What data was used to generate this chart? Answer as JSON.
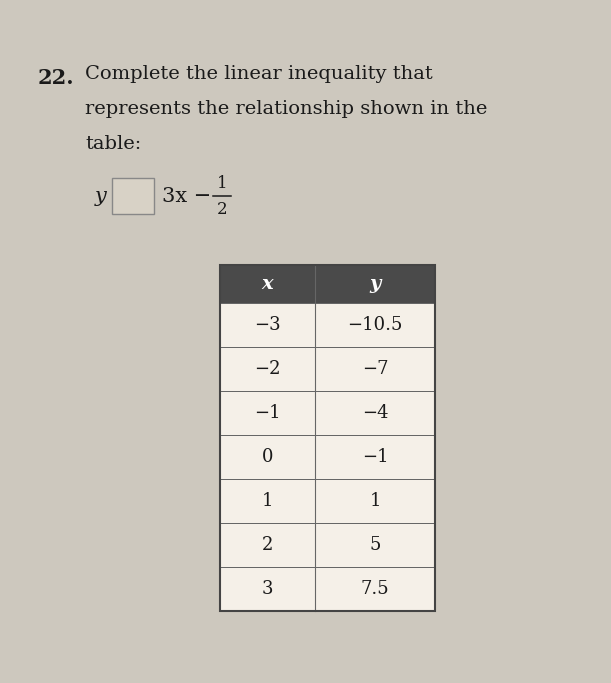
{
  "question_number": "22.",
  "question_text_line1": "Complete the linear inequality that",
  "question_text_line2": "represents the relationship shown in the",
  "question_text_line3": "table:",
  "table_headers": [
    "x",
    "y"
  ],
  "table_data": [
    [
      "−3",
      "−10.5"
    ],
    [
      "−2",
      "−7"
    ],
    [
      "−1",
      "−4"
    ],
    [
      "0",
      "−1"
    ],
    [
      "1",
      "1"
    ],
    [
      "2",
      "5"
    ],
    [
      "3",
      "7.5"
    ]
  ],
  "bg_color": "#cdc8be",
  "table_header_bg": "#4a4a4a",
  "table_header_fg": "#ffffff",
  "table_row_bg": "#f5f0e8",
  "table_border_color": "#666666",
  "text_color": "#1a1a1a",
  "box_fill": "#d8d2c6",
  "box_border": "#888888",
  "fig_width": 6.11,
  "fig_height": 6.83,
  "dpi": 100
}
